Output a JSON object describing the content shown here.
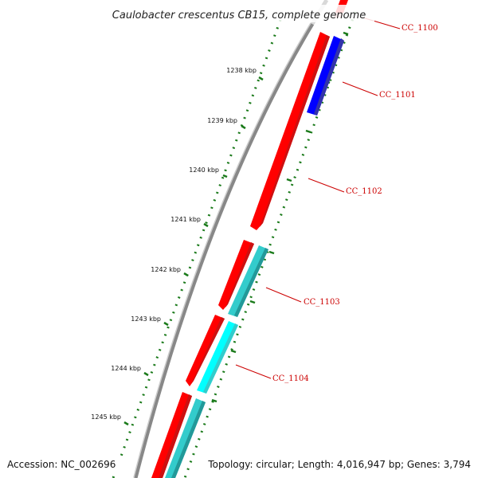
{
  "title": "Caulobacter crescentus CB15, complete genome",
  "footer": {
    "accession": "Accession: NC_002696",
    "summary": "Topology: circular; Length: 4,016,947 bp; Genes: 3,794"
  },
  "kbp_labels": [
    "1238 kbp",
    "1239 kbp",
    "1240 kbp",
    "1241 kbp",
    "1242 kbp",
    "1243 kbp",
    "1244 kbp",
    "1245 kbp"
  ],
  "gene_labels": [
    "CC_1100",
    "CC_1101",
    "CC_1102",
    "CC_1103",
    "CC_1104"
  ],
  "colors": {
    "forward_cds": "#ff0000",
    "reverse_cds_1101": "#0000ff",
    "reverse_cds_1103": "#33cccc",
    "reverse_cds_1104": "#00ffff",
    "backbone": "#888888",
    "tick_marks": "#1a7a1a",
    "label_text": "#cc0000"
  }
}
